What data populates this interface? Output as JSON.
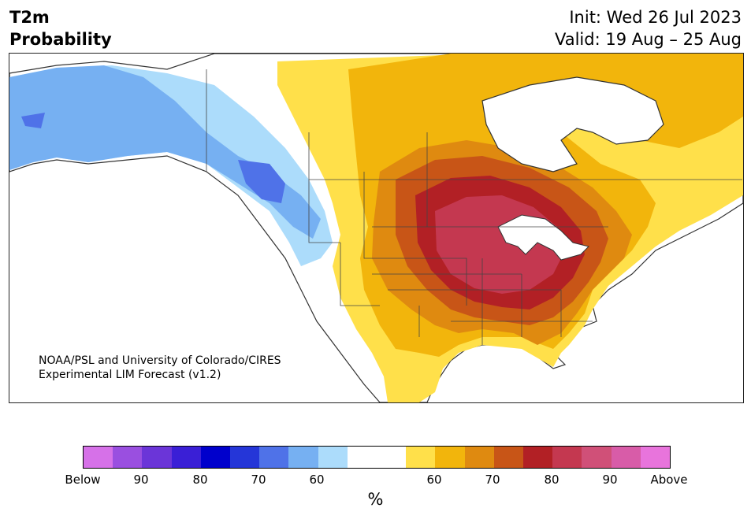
{
  "header": {
    "title_line1": "T2m",
    "title_line2": "Probability",
    "init": "Init: Wed 26 Jul 2023",
    "valid": "Valid: 19 Aug – 25 Aug"
  },
  "map": {
    "credit_line1": "NOAA/PSL and University of Colorado/CIRES",
    "credit_line2": "Experimental LIM Forecast (v1.2)"
  },
  "colorbar": {
    "colors": [
      "#d671e8",
      "#9a4fe0",
      "#6b35d8",
      "#3a1fd6",
      "#0000cc",
      "#2536d8",
      "#4f72e8",
      "#76b0f2",
      "#acdcfb",
      "#ffffff",
      "#ffffff",
      "#ffe04a",
      "#f2b50c",
      "#df8a10",
      "#c85517",
      "#b22025",
      "#c43850",
      "#d05078",
      "#d85ca8",
      "#e874dc"
    ],
    "tick_labels": [
      "Below",
      "90",
      "80",
      "70",
      "60",
      "60",
      "70",
      "80",
      "90",
      "Above"
    ],
    "unit": "%"
  },
  "legend_colors": {
    "below_far": "#4f72e8",
    "below_mid": "#76b0f2",
    "below_near": "#acdcfb",
    "neutral": "#ffffff",
    "above_50": "#ffe04a",
    "above_60": "#f2b50c",
    "above_65": "#df8a10",
    "above_70": "#c85517",
    "above_75": "#b22025",
    "above_80": "#c43850"
  }
}
